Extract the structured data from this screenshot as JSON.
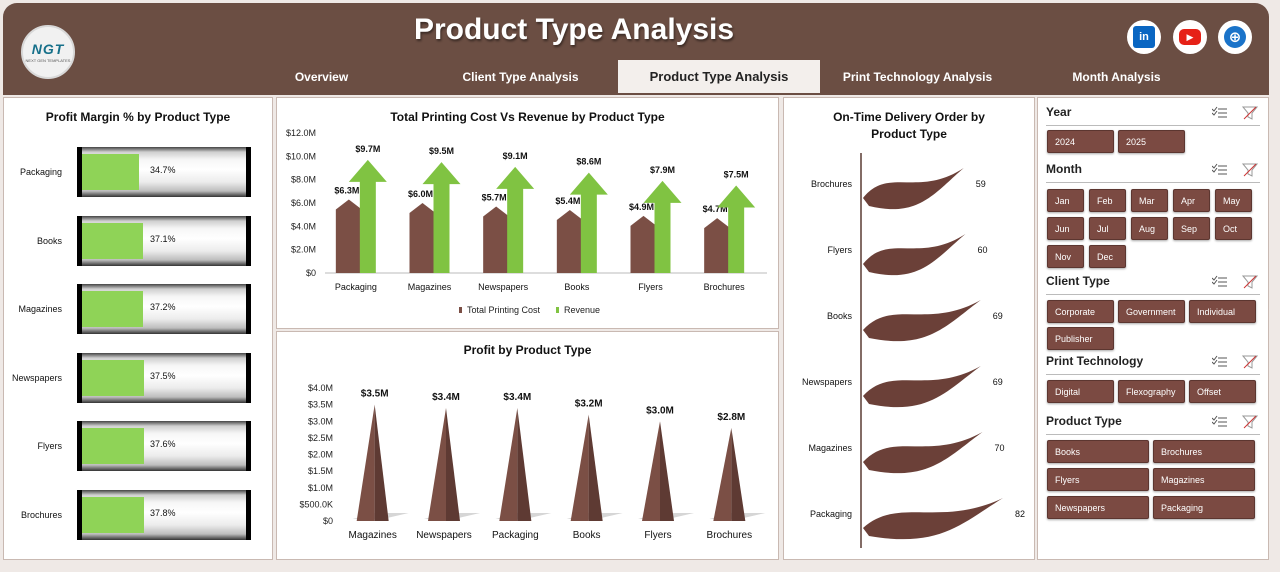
{
  "header": {
    "title": "Product Type Analysis",
    "logo_text": "NGT",
    "logo_subtext": "NEXT GEN TEMPLATES",
    "social": [
      {
        "name": "linkedin",
        "glyph": "in",
        "color": "#0a66c2"
      },
      {
        "name": "youtube",
        "glyph": "▶",
        "color": "#e62117"
      },
      {
        "name": "website",
        "glyph": "⊕",
        "color": "#1a73c9"
      }
    ]
  },
  "tabs": [
    {
      "label": "Overview",
      "active": false
    },
    {
      "label": "Client Type Analysis",
      "active": false
    },
    {
      "label": "Product Type Analysis",
      "active": true
    },
    {
      "label": "Print Technology Analysis",
      "active": false
    },
    {
      "label": "Month Analysis",
      "active": false
    }
  ],
  "colors": {
    "brown": "#6b4e43",
    "bar_brown": "#7b4f45",
    "green": "#80c342",
    "slicer": "#7b4a42"
  },
  "profit_margin": {
    "title": "Profit Margin % by Product Type",
    "items": [
      {
        "label": "Packaging",
        "value": 34.7,
        "text": "34.7%"
      },
      {
        "label": "Books",
        "value": 37.1,
        "text": "37.1%"
      },
      {
        "label": "Magazines",
        "value": 37.2,
        "text": "37.2%"
      },
      {
        "label": "Newspapers",
        "value": 37.5,
        "text": "37.5%"
      },
      {
        "label": "Flyers",
        "value": 37.6,
        "text": "37.6%"
      },
      {
        "label": "Brochures",
        "value": 37.8,
        "text": "37.8%"
      }
    ]
  },
  "chart_data": [
    {
      "type": "bar",
      "title": "Total Printing Cost Vs Revenue by Product Type",
      "categories": [
        "Packaging",
        "Magazines",
        "Newspapers",
        "Books",
        "Flyers",
        "Brochures"
      ],
      "series": [
        {
          "name": "Total Printing Cost",
          "values": [
            6.3,
            6.0,
            5.7,
            5.4,
            4.9,
            4.7
          ],
          "labels": [
            "$6.3M",
            "$6.0M",
            "$5.7M",
            "$5.4M",
            "$4.9M",
            "$4.7M"
          ],
          "color": "#7b4f45"
        },
        {
          "name": "Revenue",
          "values": [
            9.7,
            9.5,
            9.1,
            8.6,
            7.9,
            7.5
          ],
          "labels": [
            "$9.7M",
            "$9.5M",
            "$9.1M",
            "$8.6M",
            "$7.9M",
            "$7.5M"
          ],
          "color": "#80c342"
        }
      ],
      "ylim": [
        0,
        12
      ],
      "yticks": [
        "$0",
        "$2.0M",
        "$4.0M",
        "$6.0M",
        "$8.0M",
        "$10.0M",
        "$12.0M"
      ],
      "legend": "bottom"
    },
    {
      "type": "bar",
      "title": "Profit by Product Type",
      "categories": [
        "Magazines",
        "Newspapers",
        "Packaging",
        "Books",
        "Flyers",
        "Brochures"
      ],
      "values": [
        3.5,
        3.4,
        3.4,
        3.2,
        3.0,
        2.8
      ],
      "labels": [
        "$3.5M",
        "$3.4M",
        "$3.4M",
        "$3.2M",
        "$3.0M",
        "$2.8M"
      ],
      "ylim": [
        0,
        4
      ],
      "yticks": [
        "$0",
        "$500.0K",
        "$1.0M",
        "$1.5M",
        "$2.0M",
        "$2.5M",
        "$3.0M",
        "$3.5M",
        "$4.0M"
      ],
      "color": "#7b4f45"
    },
    {
      "type": "bar",
      "title": "On-Time Delivery Order by Product Type",
      "categories": [
        "Brochures",
        "Flyers",
        "Books",
        "Newspapers",
        "Magazines",
        "Packaging"
      ],
      "values": [
        59,
        60,
        69,
        69,
        70,
        82
      ],
      "orientation": "horizontal",
      "color": "#6b4038"
    }
  ],
  "slicers": {
    "year": {
      "title": "Year",
      "items": [
        "2024",
        "2025"
      ]
    },
    "month": {
      "title": "Month",
      "items": [
        "Jan",
        "Feb",
        "Mar",
        "Apr",
        "May",
        "Jun",
        "Jul",
        "Aug",
        "Sep",
        "Oct",
        "Nov",
        "Dec"
      ]
    },
    "client": {
      "title": "Client Type",
      "items": [
        "Corporate",
        "Government",
        "Individual",
        "Publisher"
      ]
    },
    "tech": {
      "title": "Print Technology",
      "items": [
        "Digital",
        "Flexography",
        "Offset"
      ]
    },
    "product": {
      "title": "Product Type",
      "items": [
        "Books",
        "Brochures",
        "Flyers",
        "Magazines",
        "Newspapers",
        "Packaging"
      ]
    }
  }
}
